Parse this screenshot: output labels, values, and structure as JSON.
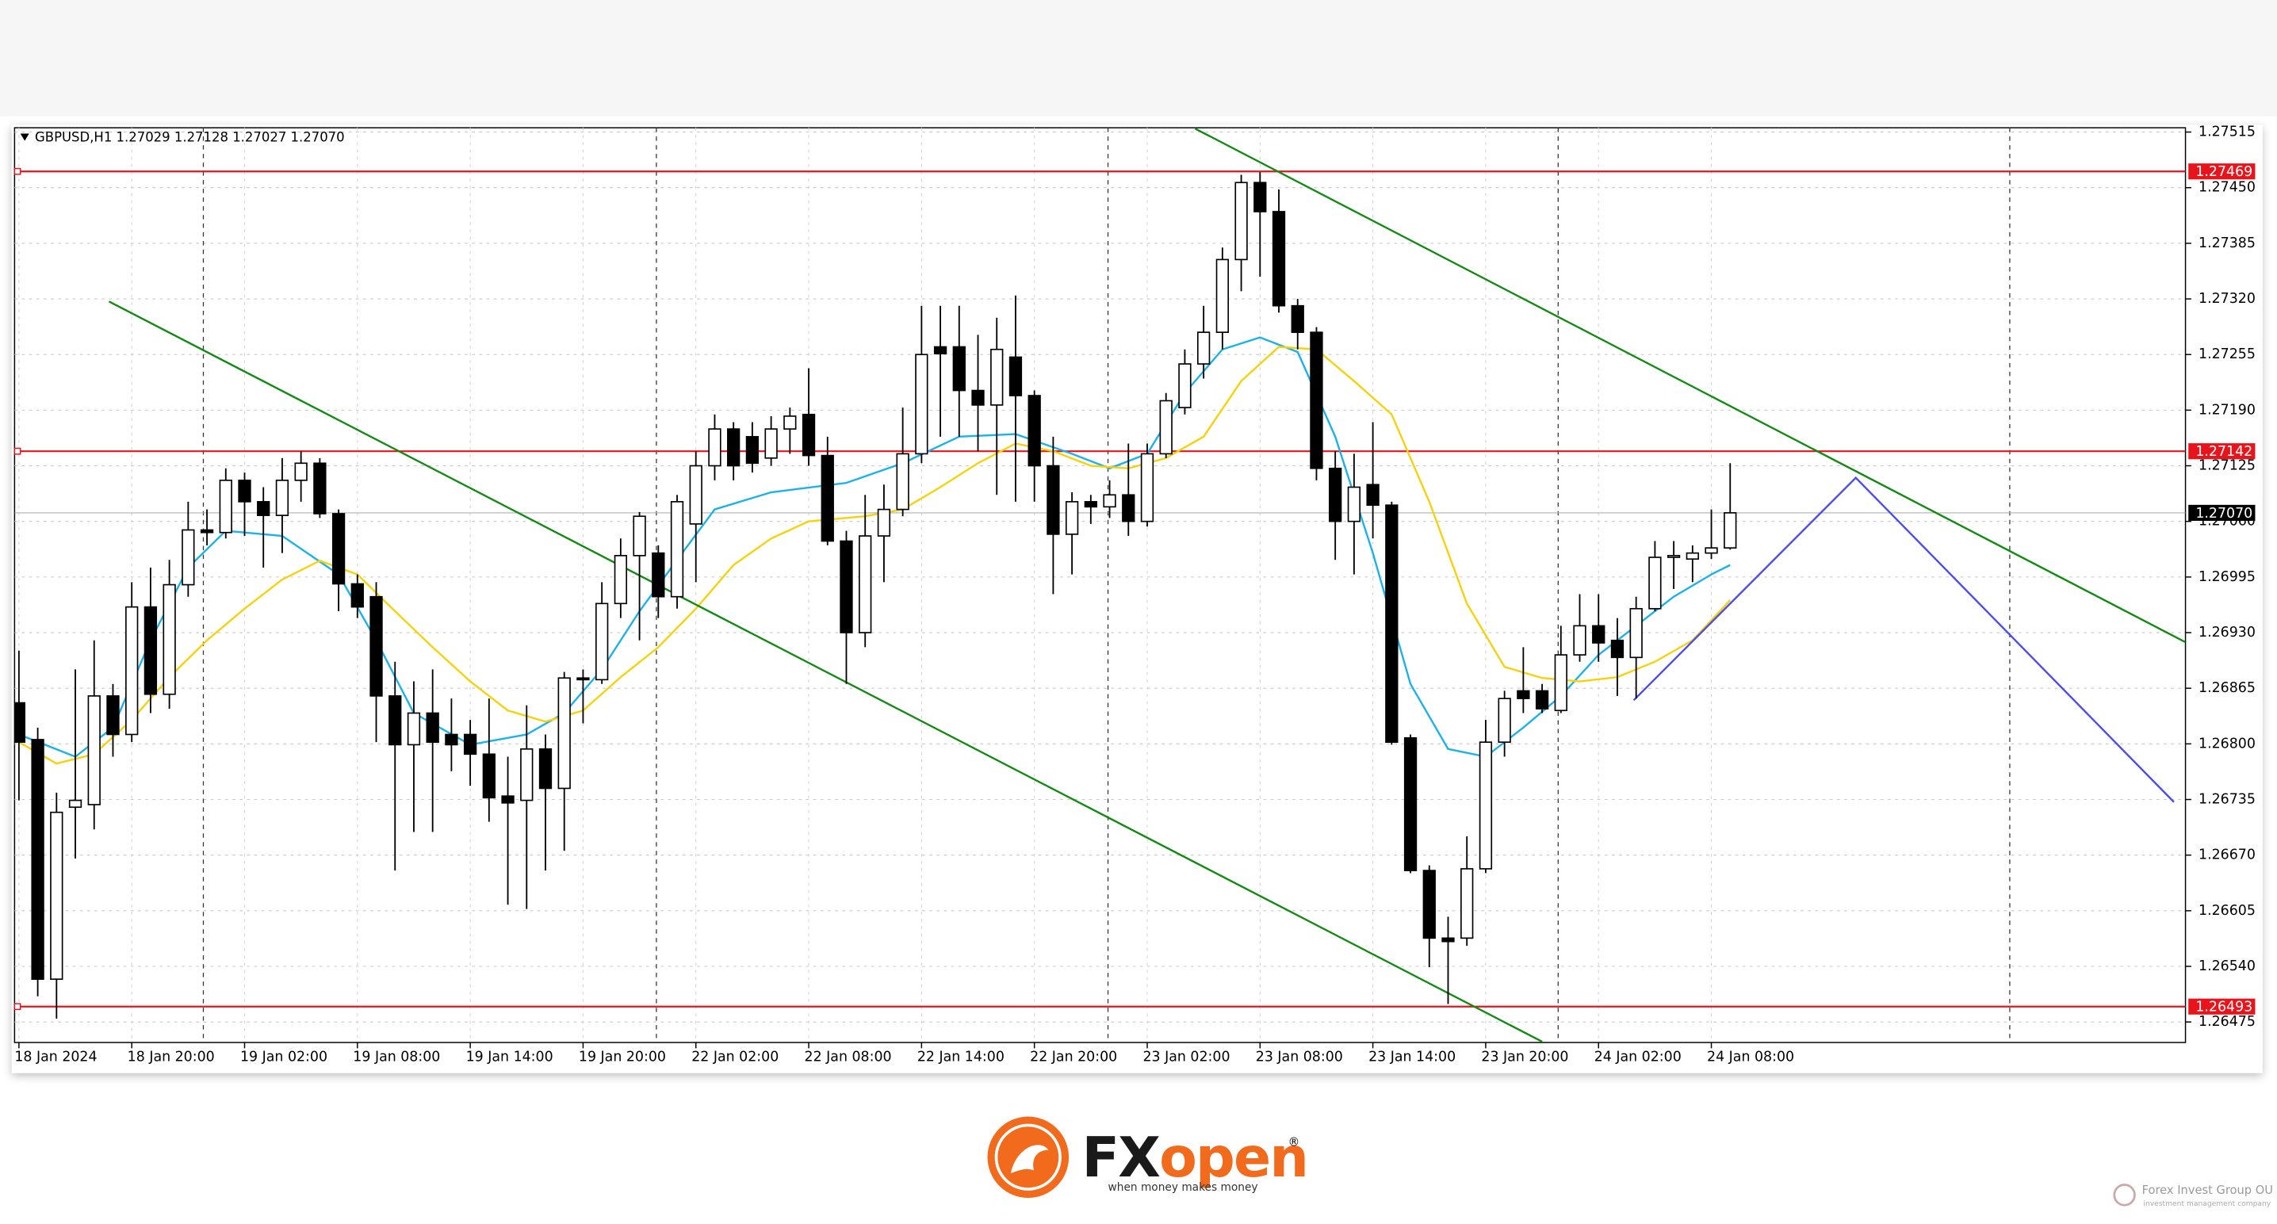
{
  "chart_data": {
    "type": "candlestick",
    "symbol_info": "GBPUSD,H1  1.27029  1.27128  1.27027  1.27070",
    "categories": [
      "18 Jan 2024",
      null,
      null,
      null,
      null,
      null,
      "18 Jan 20:00",
      null,
      null,
      null,
      null,
      null,
      "19 Jan 02:00",
      null,
      null,
      null,
      null,
      null,
      "19 Jan 08:00",
      null,
      null,
      null,
      null,
      null,
      "19 Jan 14:00",
      null,
      null,
      null,
      null,
      null,
      "19 Jan 20:00",
      null,
      null,
      null,
      null,
      null,
      "22 Jan 02:00",
      null,
      null,
      null,
      null,
      null,
      "22 Jan 08:00",
      null,
      null,
      null,
      null,
      null,
      "22 Jan 14:00",
      null,
      null,
      null,
      null,
      null,
      "22 Jan 20:00",
      null,
      null,
      null,
      null,
      null,
      "23 Jan 02:00",
      null,
      null,
      null,
      null,
      null,
      "23 Jan 08:00",
      null,
      null,
      null,
      null,
      null,
      "23 Jan 14:00",
      null,
      null,
      null,
      null,
      null,
      "23 Jan 20:00",
      null,
      null,
      null,
      null,
      null,
      "24 Jan 02:00",
      null,
      null,
      null,
      null,
      null,
      "24 Jan 08:00",
      null
    ],
    "open": [
      1.26848,
      1.26805,
      1.26525,
      1.26726,
      1.26729,
      1.26856,
      1.26811,
      1.2696,
      1.26858,
      1.26986,
      1.2705,
      1.27047,
      1.27108,
      1.27083,
      1.27067,
      1.27108,
      1.27128,
      1.27069,
      1.26987,
      1.26972,
      1.26856,
      1.26799,
      1.26836,
      1.26811,
      1.26811,
      1.26788,
      1.26739,
      1.26734,
      1.26794,
      1.26748,
      1.26877,
      1.26875,
      1.26964,
      1.2702,
      1.27023,
      1.26972,
      1.27057,
      1.27125,
      1.27168,
      1.27159,
      1.27134,
      1.27168,
      1.27185,
      1.27137,
      1.27037,
      1.2693,
      1.27043,
      1.27074,
      1.27139,
      1.27264,
      1.27264,
      1.27213,
      1.27196,
      1.27252,
      1.27207,
      1.27125,
      1.27045,
      1.27083,
      1.27077,
      1.27091,
      1.2706,
      1.27139,
      1.27193,
      1.27244,
      1.27281,
      1.27366,
      1.27456,
      1.27422,
      1.27312,
      1.27281,
      1.27122,
      1.2706,
      1.27103,
      1.27079,
      1.26807,
      1.26652,
      1.26573,
      1.26573,
      1.26654,
      1.26802,
      1.26862,
      1.26862,
      1.26839,
      1.26904,
      1.26938,
      1.26921,
      1.26901,
      1.26958,
      1.27018,
      1.27016,
      1.27023,
      1.27029
    ],
    "high": [
      1.26909,
      1.26819,
      1.26743,
      1.26887,
      1.26921,
      1.2687,
      1.26989,
      1.27006,
      1.27015,
      1.27083,
      1.27074,
      1.27122,
      1.27117,
      1.271,
      1.27134,
      1.27142,
      1.27134,
      1.27074,
      1.26998,
      1.26989,
      1.26896,
      1.26873,
      1.26887,
      1.26853,
      1.26828,
      1.26853,
      1.26785,
      1.26845,
      1.26811,
      1.26884,
      1.26887,
      1.26989,
      1.2704,
      1.27071,
      1.27032,
      1.27091,
      1.27142,
      1.27185,
      1.27176,
      1.27176,
      1.27183,
      1.27193,
      1.27239,
      1.27159,
      1.27049,
      1.27091,
      1.27103,
      1.27193,
      1.27312,
      1.27312,
      1.27312,
      1.27278,
      1.27298,
      1.27324,
      1.27213,
      1.27159,
      1.27094,
      1.27091,
      1.27108,
      1.27151,
      1.27151,
      1.2721,
      1.27261,
      1.27312,
      1.2738,
      1.27465,
      1.27468,
      1.27448,
      1.2732,
      1.27287,
      1.27142,
      1.27139,
      1.27176,
      1.27083,
      1.26811,
      1.26658,
      1.26598,
      1.26692,
      1.26828,
      1.26862,
      1.26913,
      1.2687,
      1.26938,
      1.26975,
      1.26975,
      1.26947,
      1.26972,
      1.27037,
      1.27037,
      1.27032,
      1.27074,
      1.27128
    ],
    "low": [
      1.26734,
      1.26505,
      1.26479,
      1.26666,
      1.267,
      1.26785,
      1.26802,
      1.26836,
      1.26841,
      1.26972,
      1.27032,
      1.2704,
      1.27043,
      1.27006,
      1.27023,
      1.27083,
      1.27064,
      1.26955,
      1.26947,
      1.26802,
      1.26652,
      1.26697,
      1.26697,
      1.26768,
      1.26751,
      1.26709,
      1.26612,
      1.26607,
      1.26652,
      1.26675,
      1.26824,
      1.2687,
      1.26947,
      1.26921,
      1.26947,
      1.26958,
      1.26989,
      1.27108,
      1.27108,
      1.27117,
      1.27125,
      1.27139,
      1.27125,
      1.27032,
      1.2687,
      1.26913,
      1.26989,
      1.27066,
      1.27128,
      1.27159,
      1.27159,
      1.27142,
      1.27091,
      1.27083,
      1.27083,
      1.26975,
      1.26998,
      1.27057,
      1.27064,
      1.27043,
      1.27054,
      1.27134,
      1.27185,
      1.27227,
      1.27261,
      1.27329,
      1.27346,
      1.27304,
      1.27261,
      1.27108,
      1.27015,
      1.26998,
      1.2704,
      1.26799,
      1.26649,
      1.26539,
      1.26496,
      1.26564,
      1.26649,
      1.26785,
      1.26836,
      1.26836,
      1.26836,
      1.26896,
      1.26896,
      1.26856,
      1.26853,
      1.26955,
      1.26981,
      1.26989,
      1.27016,
      1.27027
    ],
    "close": [
      1.26802,
      1.26525,
      1.2672,
      1.26734,
      1.26856,
      1.26811,
      1.2696,
      1.26858,
      1.26986,
      1.2705,
      1.27047,
      1.27108,
      1.27083,
      1.27067,
      1.27108,
      1.27128,
      1.27069,
      1.26987,
      1.2696,
      1.26856,
      1.26799,
      1.26836,
      1.26802,
      1.26799,
      1.26788,
      1.26737,
      1.26731,
      1.26794,
      1.26748,
      1.26877,
      1.26875,
      1.26964,
      1.2702,
      1.27066,
      1.26972,
      1.27083,
      1.27125,
      1.27168,
      1.27125,
      1.27128,
      1.27168,
      1.27183,
      1.27137,
      1.27037,
      1.2693,
      1.27043,
      1.27074,
      1.27139,
      1.27255,
      1.27256,
      1.27213,
      1.27196,
      1.27261,
      1.27207,
      1.27125,
      1.27045,
      1.27083,
      1.27077,
      1.27091,
      1.2706,
      1.27139,
      1.27201,
      1.27244,
      1.27281,
      1.27366,
      1.27456,
      1.27422,
      1.27312,
      1.27281,
      1.27122,
      1.2706,
      1.271,
      1.27079,
      1.26802,
      1.26652,
      1.26573,
      1.26569,
      1.26654,
      1.26802,
      1.26853,
      1.26853,
      1.26841,
      1.26904,
      1.26938,
      1.26918,
      1.26901,
      1.26958,
      1.27018,
      1.2702,
      1.27023,
      1.27029,
      1.2707
    ],
    "up_color": "#ffffff",
    "down_color": "#000000",
    "ylim": [
      1.26451,
      1.2752
    ],
    "yticks": [
      1.27515,
      {
        "value": 1.2745,
        "label": "1.27450"
      },
      1.27385,
      {
        "value": 1.2732,
        "label": "1.27320"
      },
      1.27255,
      {
        "value": 1.2719,
        "label": "1.27190"
      },
      1.27125,
      {
        "value": 1.2706,
        "label": "1.27060"
      },
      1.26995,
      {
        "value": 1.2693,
        "label": "1.26930"
      },
      1.26865,
      {
        "value": 1.268,
        "label": "1.26800"
      },
      1.26735,
      {
        "value": 1.2667,
        "label": "1.26670"
      },
      1.26605,
      {
        "value": 1.2654,
        "label": "1.26540"
      },
      1.26475
    ],
    "grid": true,
    "levels": [
      {
        "value": 1.27469,
        "color": "#e8141c"
      },
      {
        "value": 1.27142,
        "color": "#e8141c"
      },
      {
        "value": 1.26493,
        "color": "#e8141c"
      }
    ],
    "last_price": {
      "value": 1.2707,
      "label": "1.27070"
    },
    "lines": [
      {
        "color": "#1ab2e8",
        "x": [
          0,
          3,
          5,
          7,
          9,
          11,
          14,
          17,
          19,
          21,
          24,
          27,
          29,
          31,
          33,
          35,
          37,
          40,
          44,
          47,
          50,
          53,
          56,
          58,
          60,
          62,
          64,
          66,
          68,
          70,
          72,
          74,
          76,
          78,
          80,
          82,
          84,
          86,
          88,
          90,
          91
        ],
        "y": [
          1.26811,
          1.26785,
          1.26819,
          1.26921,
          1.27006,
          1.27049,
          1.27043,
          1.26998,
          1.26921,
          1.26836,
          1.26799,
          1.26811,
          1.26836,
          1.26887,
          1.26955,
          1.27015,
          1.27074,
          1.27094,
          1.27105,
          1.27128,
          1.27159,
          1.27162,
          1.27139,
          1.27122,
          1.27139,
          1.2721,
          1.27261,
          1.27275,
          1.27258,
          1.27159,
          1.27023,
          1.2687,
          1.26794,
          1.26785,
          1.26819,
          1.26856,
          1.26904,
          1.26938,
          1.26972,
          1.26998,
          1.27009
        ]
      },
      {
        "color": "#f5d20a",
        "x": [
          0,
          2,
          4,
          6,
          8,
          10,
          12,
          14,
          16,
          18,
          20,
          22,
          24,
          26,
          28,
          30,
          32,
          34,
          36,
          38,
          40,
          42,
          45,
          47,
          49,
          51,
          53,
          55,
          57,
          59,
          61,
          63,
          65,
          67,
          69,
          71,
          73,
          75,
          77,
          79,
          81,
          83,
          85,
          87,
          89,
          91
        ],
        "y": [
          1.26802,
          1.26777,
          1.26788,
          1.26828,
          1.26878,
          1.26921,
          1.26958,
          1.26992,
          1.27014,
          1.26998,
          1.26955,
          1.26913,
          1.26873,
          1.26839,
          1.26826,
          1.26839,
          1.26878,
          1.26913,
          1.26958,
          1.27009,
          1.2704,
          1.2706,
          1.27066,
          1.27074,
          1.271,
          1.27128,
          1.27151,
          1.27142,
          1.27125,
          1.27122,
          1.27134,
          1.27159,
          1.27224,
          1.27264,
          1.27261,
          1.27224,
          1.27185,
          1.27083,
          1.26964,
          1.2689,
          1.26877,
          1.26873,
          1.26878,
          1.26896,
          1.26921,
          1.26968
        ]
      },
      {
        "color": "#138a13",
        "x": [
          4.79,
          81.0
        ],
        "y": [
          1.27317,
          1.26452
        ]
      },
      {
        "color": "#138a13",
        "x": [
          62.55,
          115.2
        ],
        "y": [
          1.27519,
          1.26919
        ]
      },
      {
        "color": "#4b4bf0",
        "x": [
          85.87,
          97.68,
          114.6
        ],
        "y": [
          1.26851,
          1.27111,
          1.26732
        ]
      }
    ]
  },
  "logo": {
    "brand_dark": "FX",
    "brand_accent": "open",
    "registered": "®",
    "tagline": "when money makes money"
  },
  "footer": {
    "company": "Forex Invest Group OU",
    "subtitle": "investment management company"
  }
}
